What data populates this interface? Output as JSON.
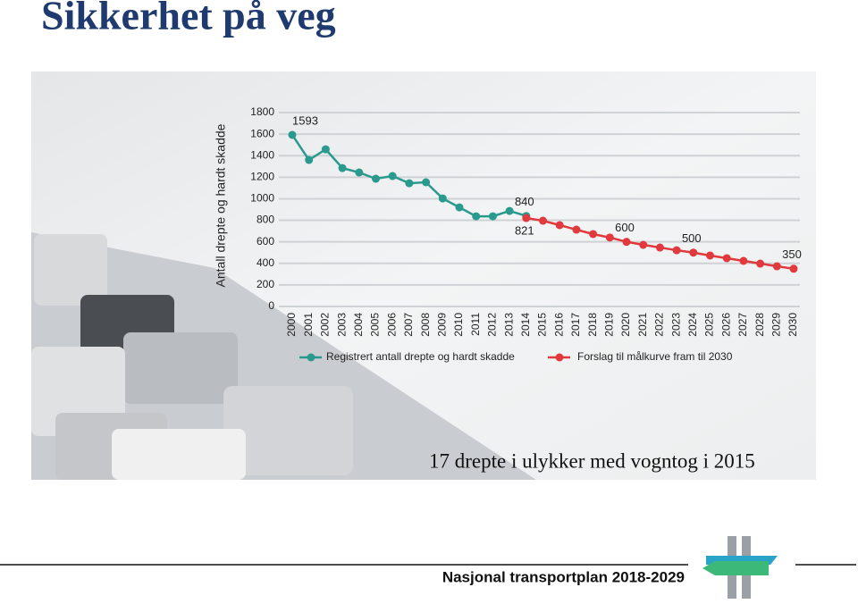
{
  "slide_title": "Sikkerhet på veg",
  "chart_data": {
    "type": "line",
    "y_label": "Antall drepte og hardt skadde",
    "categories": [
      "2000",
      "2001",
      "2002",
      "2003",
      "2004",
      "2005",
      "2006",
      "2007",
      "2008",
      "2009",
      "2010",
      "2011",
      "2012",
      "2013",
      "2014",
      "2015",
      "2016",
      "2017",
      "2018",
      "2019",
      "2020",
      "2021",
      "2022",
      "2023",
      "2024",
      "2025",
      "2026",
      "2027",
      "2028",
      "2029",
      "2030"
    ],
    "series": [
      {
        "name": "Registrert antall drepte og hardt skadde",
        "color": "#2a9a8e",
        "values": [
          1593,
          1360,
          1459,
          1285,
          1244,
          1186,
          1211,
          1144,
          1153,
          1003,
          920,
          837,
          837,
          887,
          840,
          null,
          null,
          null,
          null,
          null,
          null,
          null,
          null,
          null,
          null,
          null,
          null,
          null,
          null,
          null,
          null
        ],
        "labeled": [
          0,
          14
        ]
      },
      {
        "name": "Forslag til målkurve fram til 2030",
        "color": "#e0393e",
        "values": [
          null,
          null,
          null,
          null,
          null,
          null,
          null,
          null,
          null,
          null,
          null,
          null,
          null,
          null,
          821,
          796,
          755,
          713,
          672,
          640,
          600,
          572,
          547,
          522,
          500,
          473,
          448,
          423,
          398,
          373,
          350
        ],
        "labeled": [
          14,
          20,
          24,
          30
        ]
      }
    ],
    "ylim": [
      0,
      1800
    ],
    "yticks": [
      0,
      200,
      400,
      600,
      800,
      1000,
      1200,
      1400,
      1600,
      1800
    ],
    "grid": true
  },
  "caption": "17 drepte i ulykker med vogntog i 2015",
  "footer": "Nasjonal transportplan 2018-2029"
}
